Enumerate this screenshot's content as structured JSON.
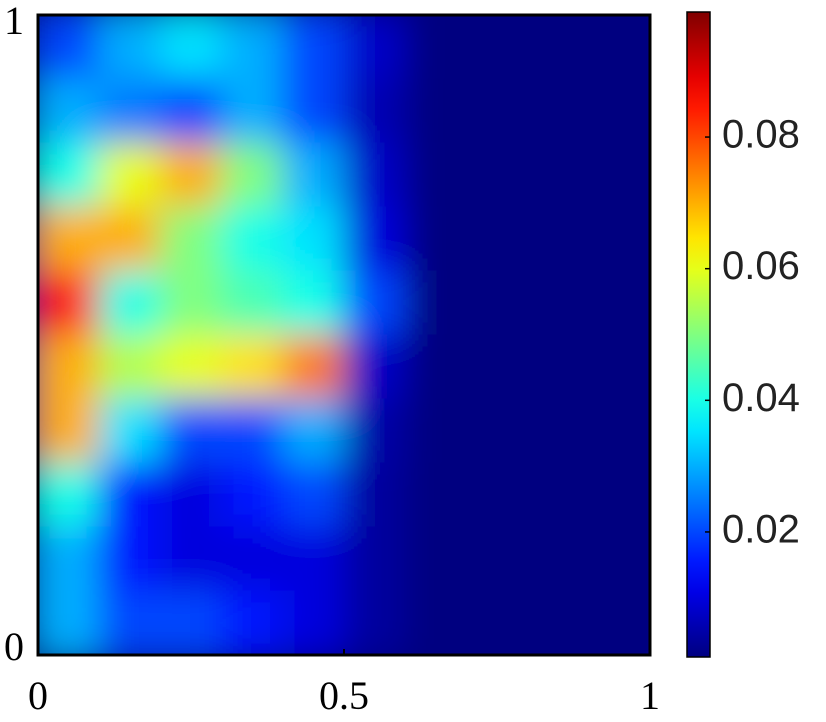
{
  "chart_data": {
    "type": "heatmap",
    "colormap": "jet",
    "xlim": [
      0,
      1
    ],
    "ylim": [
      0,
      1
    ],
    "xticks": [
      0,
      0.5,
      1
    ],
    "yticks": [
      0,
      1
    ],
    "clim": [
      0.001,
      0.099
    ],
    "cticks": [
      0.02,
      0.04,
      0.06,
      0.08
    ],
    "z": [
      [
        0.02,
        0.03,
        0.035,
        0.03,
        0.02,
        0.008,
        0.001,
        0.001,
        0.001,
        0.001
      ],
      [
        0.03,
        0.025,
        0.02,
        0.03,
        0.02,
        0.006,
        0.001,
        0.001,
        0.001,
        0.001
      ],
      [
        0.04,
        0.06,
        0.07,
        0.05,
        0.03,
        0.008,
        0.001,
        0.001,
        0.001,
        0.001
      ],
      [
        0.07,
        0.07,
        0.05,
        0.04,
        0.035,
        0.01,
        0.001,
        0.001,
        0.001,
        0.001
      ],
      [
        0.085,
        0.04,
        0.05,
        0.045,
        0.04,
        0.02,
        0.001,
        0.001,
        0.001,
        0.001
      ],
      [
        0.07,
        0.055,
        0.06,
        0.065,
        0.075,
        0.008,
        0.001,
        0.001,
        0.001,
        0.001
      ],
      [
        0.07,
        0.035,
        0.02,
        0.02,
        0.03,
        0.005,
        0.001,
        0.001,
        0.001,
        0.001
      ],
      [
        0.04,
        0.015,
        0.01,
        0.015,
        0.02,
        0.004,
        0.001,
        0.001,
        0.001,
        0.001
      ],
      [
        0.03,
        0.015,
        0.01,
        0.01,
        0.01,
        0.004,
        0.001,
        0.001,
        0.001,
        0.001
      ],
      [
        0.03,
        0.02,
        0.02,
        0.015,
        0.01,
        0.004,
        0.001,
        0.001,
        0.001,
        0.001
      ]
    ]
  }
}
